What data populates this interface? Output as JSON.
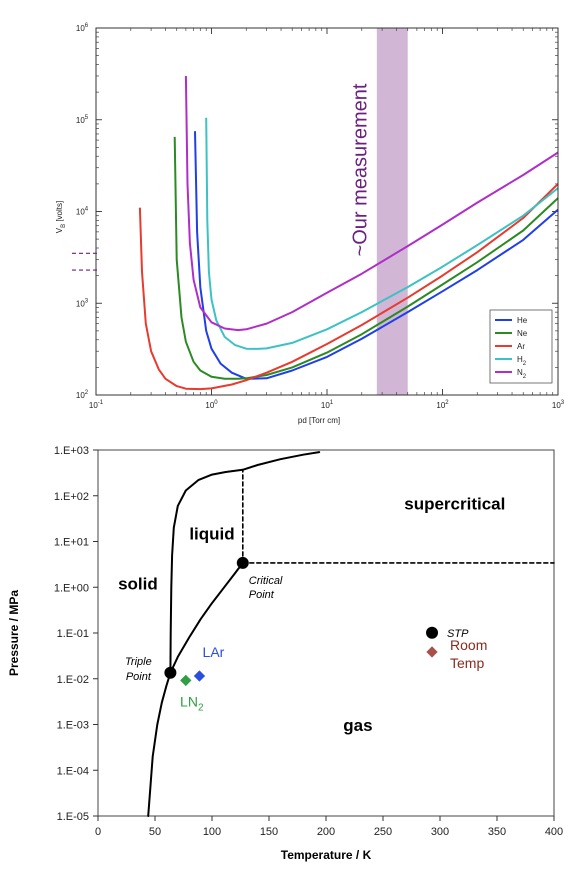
{
  "chart_data": [
    {
      "type": "line",
      "title": "",
      "xlabel": "pd [Torr cm]",
      "ylabel": "V",
      "ylabel_sub": "B",
      "ylabel_unit": "[volts]",
      "xscale": "log",
      "yscale": "log",
      "xlim": [
        0.1,
        1000
      ],
      "ylim": [
        100,
        1000000
      ],
      "xticks": [
        {
          "v": 0.1,
          "base": "10",
          "exp": "-1"
        },
        {
          "v": 1,
          "base": "10",
          "exp": "0"
        },
        {
          "v": 10,
          "base": "10",
          "exp": "1"
        },
        {
          "v": 100,
          "base": "10",
          "exp": "2"
        },
        {
          "v": 1000,
          "base": "10",
          "exp": "3"
        }
      ],
      "yticks": [
        {
          "v": 100,
          "base": "10",
          "exp": "2"
        },
        {
          "v": 1000,
          "base": "10",
          "exp": "3"
        },
        {
          "v": 10000,
          "base": "10",
          "exp": "4"
        },
        {
          "v": 100000,
          "base": "10",
          "exp": "5"
        },
        {
          "v": 1000000,
          "base": "10",
          "exp": "6"
        }
      ],
      "legend_position": "bottom-right",
      "series": [
        {
          "name": "He",
          "sub": "",
          "color": "#1f3fe8",
          "x": [
            0.72,
            0.75,
            0.8,
            0.9,
            1.0,
            1.2,
            1.5,
            2,
            3,
            5,
            10,
            20,
            50,
            100,
            200,
            500,
            1000
          ],
          "y": [
            75000,
            6000,
            1500,
            500,
            320,
            220,
            175,
            150,
            152,
            185,
            260,
            410,
            800,
            1350,
            2300,
            4900,
            10500
          ]
        },
        {
          "name": "Ne",
          "sub": "",
          "color": "#2c8a22",
          "x": [
            0.48,
            0.5,
            0.55,
            0.6,
            0.7,
            0.8,
            1.0,
            1.3,
            1.7,
            2,
            3,
            5,
            10,
            20,
            50,
            100,
            200,
            500,
            1000
          ],
          "y": [
            65000,
            3000,
            700,
            380,
            230,
            185,
            158,
            150,
            150,
            152,
            165,
            200,
            290,
            460,
            920,
            1600,
            2800,
            6200,
            14000
          ]
        },
        {
          "name": "Ar",
          "sub": "",
          "color": "#e83a2e",
          "x": [
            0.24,
            0.25,
            0.27,
            0.3,
            0.35,
            0.4,
            0.5,
            0.6,
            0.8,
            1.0,
            1.5,
            2,
            3,
            5,
            10,
            20,
            50,
            100,
            200,
            500,
            1000
          ],
          "y": [
            11000,
            2200,
            600,
            300,
            190,
            150,
            125,
            117,
            116,
            118,
            130,
            145,
            175,
            230,
            360,
            580,
            1150,
            2000,
            3600,
            8500,
            20000
          ]
        },
        {
          "name": "H",
          "sub": "2",
          "color": "#3cc2c4",
          "x": [
            0.9,
            0.92,
            0.95,
            1.0,
            1.1,
            1.3,
            1.6,
            2,
            2.5,
            3,
            5,
            10,
            20,
            50,
            100,
            200,
            500,
            1000
          ],
          "y": [
            105000,
            8000,
            2200,
            1100,
            650,
            430,
            350,
            320,
            318,
            322,
            370,
            520,
            800,
            1500,
            2500,
            4300,
            9000,
            18000
          ]
        },
        {
          "name": "N",
          "sub": "2",
          "color": "#b02ec8",
          "x": [
            0.6,
            0.62,
            0.65,
            0.7,
            0.8,
            1.0,
            1.3,
            1.7,
            2,
            3,
            5,
            10,
            20,
            50,
            100,
            200,
            500,
            1000
          ],
          "y": [
            300000,
            20000,
            4500,
            1800,
            900,
            620,
            530,
            510,
            520,
            600,
            800,
            1300,
            2100,
            4200,
            7200,
            12500,
            25000,
            44000
          ]
        }
      ],
      "annotation_band": {
        "label": "~Our measurement",
        "x_from": 27,
        "x_to": 50,
        "color": "#d2b6d6"
      },
      "dashed_markers_y": [
        3500,
        2300
      ]
    },
    {
      "type": "line",
      "title": "",
      "xlabel": "Temperature / K",
      "ylabel": "Pressure / MPa",
      "xlim": [
        0,
        400
      ],
      "yscale": "log",
      "ylim": [
        1e-05,
        1000
      ],
      "xticks": [
        0,
        50,
        100,
        150,
        200,
        250,
        300,
        350,
        400
      ],
      "yticks": [
        {
          "v": 1000,
          "label": "1.E+03"
        },
        {
          "v": 100,
          "label": "1.E+02"
        },
        {
          "v": 10,
          "label": "1.E+01"
        },
        {
          "v": 1,
          "label": "1.E+00"
        },
        {
          "v": 0.1,
          "label": "1.E-01"
        },
        {
          "v": 0.01,
          "label": "1.E-02"
        },
        {
          "v": 0.001,
          "label": "1.E-03"
        },
        {
          "v": 0.0001,
          "label": "1.E-04"
        },
        {
          "v": 1e-05,
          "label": "1.E-05"
        }
      ],
      "series": [
        {
          "name": "",
          "style": "solid",
          "x": [
            44,
            48,
            52,
            56,
            60,
            63.5
          ],
          "y": [
            1e-05,
            0.0002,
            0.001,
            0.003,
            0.007,
            0.0135
          ]
        },
        {
          "name": "",
          "style": "solid",
          "x": [
            63.5,
            70,
            80,
            90,
            100,
            110,
            120,
            127
          ],
          "y": [
            0.0135,
            0.03,
            0.08,
            0.2,
            0.45,
            0.95,
            2.0,
            3.4
          ]
        },
        {
          "name": "",
          "style": "solid",
          "x": [
            63.5,
            63.8,
            64.3,
            65,
            66.5,
            70,
            77,
            88,
            100,
            112,
            127
          ],
          "y": [
            0.0135,
            0.1,
            1,
            5,
            20,
            60,
            130,
            220,
            290,
            330,
            370
          ]
        },
        {
          "name": "",
          "style": "solid",
          "x": [
            127,
            140,
            160,
            180,
            194
          ],
          "y": [
            370,
            470,
            630,
            790,
            900
          ]
        },
        {
          "name": "",
          "style": "dashed",
          "x": [
            127,
            127
          ],
          "y": [
            3.4,
            370
          ]
        },
        {
          "name": "",
          "style": "dashed",
          "x": [
            127,
            400
          ],
          "y": [
            3.4,
            3.4
          ]
        }
      ],
      "points": [
        {
          "label": "Triple",
          "label2": "Point",
          "x": 63.5,
          "y": 0.0135,
          "marker": "circle",
          "color": "#000000"
        },
        {
          "label": "Critical",
          "label2": "Point",
          "x": 127,
          "y": 3.4,
          "marker": "circle",
          "color": "#000000"
        },
        {
          "label": "STP",
          "x": 293,
          "y": 0.101,
          "marker": "circle",
          "color": "#000000"
        },
        {
          "label": "LAr",
          "x": 89,
          "y": 0.0115,
          "marker": "diamond",
          "color": "#2a4fe0"
        },
        {
          "label": "LN",
          "sub": "2",
          "x": 77,
          "y": 0.0092,
          "marker": "diamond",
          "color": "#2ea043"
        },
        {
          "label": "Room",
          "label2": "Temp",
          "x": 293,
          "y": 0.0385,
          "marker": "diamond",
          "color": "#a8514a"
        }
      ],
      "regions": [
        {
          "label": "liquid",
          "x": 100,
          "y": 11
        },
        {
          "label": "supercritical",
          "x": 313,
          "y": 50
        },
        {
          "label": "solid",
          "x": 35,
          "y": 0.9
        },
        {
          "label": "gas",
          "x": 228,
          "y": 0.00072
        }
      ],
      "colors": {
        "liquid_label": "#000000",
        "lar": "#2a4fe0",
        "ln2": "#2ea043",
        "room_temp": "#8b2a1e"
      }
    }
  ]
}
